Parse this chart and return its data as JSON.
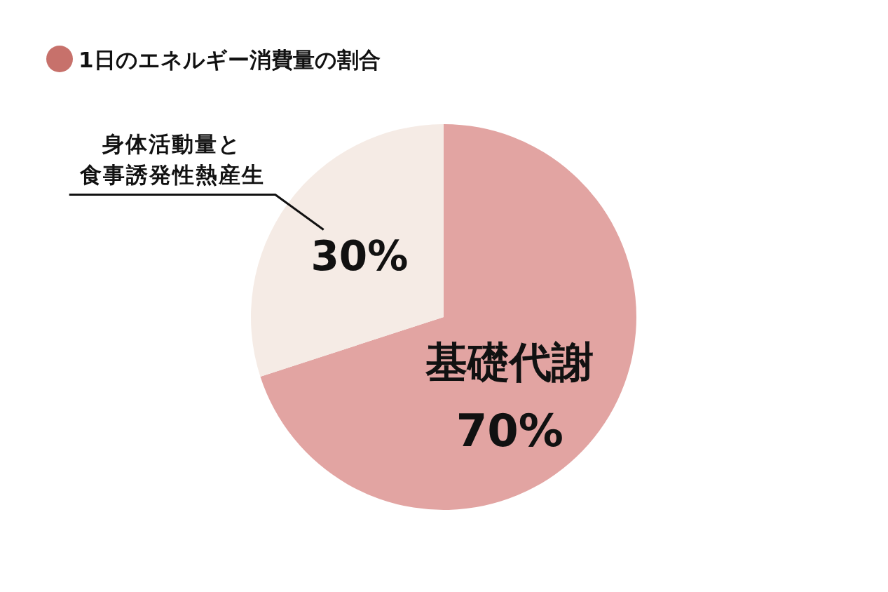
{
  "chart_data": {
    "type": "pie",
    "title": "1日のエネルギー消費量の割合",
    "categories": [
      "基礎代謝",
      "身体活動量と食事誘発性熱産生"
    ],
    "values": [
      70,
      30
    ],
    "colors": [
      "#e2a4a2",
      "#f5ebe5"
    ],
    "value_labels": [
      "70%",
      "30%"
    ]
  }
}
